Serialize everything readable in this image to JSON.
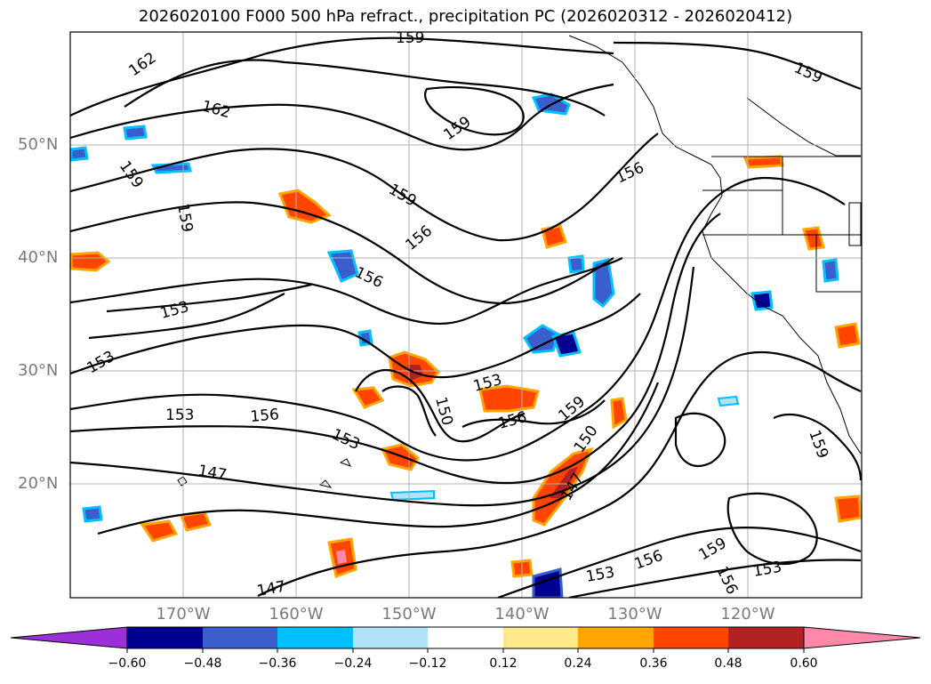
{
  "title": "2026020100 F000 500 hPa refract., precipitation PC (2026020312 - 2026020412)",
  "lat_labels": [
    "50°N",
    "40°N",
    "30°N",
    "20°N"
  ],
  "lon_labels": [
    "170°W",
    "160°W",
    "150°W",
    "140°W",
    "130°W",
    "120°W"
  ],
  "contour_labels": [
    "159",
    "162",
    "162",
    "159",
    "159",
    "159",
    "159",
    "156",
    "159",
    "156",
    "156",
    "153",
    "153",
    "153",
    "156",
    "153",
    "150",
    "153",
    "156",
    "159",
    "150",
    "147",
    "147",
    "147",
    "153",
    "156",
    "159",
    "156",
    "159",
    "153"
  ],
  "colorbar": {
    "ticks": [
      "−0.60",
      "−0.48",
      "−0.36",
      "−0.24",
      "−0.12",
      "0.12",
      "0.24",
      "0.36",
      "0.48",
      "0.60"
    ],
    "colors": [
      "#9b30d9",
      "#000090",
      "#3a5fcd",
      "#00bfff",
      "#aee3f8",
      "#ffffff",
      "#ffe98a",
      "#ffa500",
      "#ff4500",
      "#b22222",
      "#ff88aa"
    ]
  },
  "colors": {
    "grid": "#b0b0b0",
    "contour": "#000000",
    "tick_label": "#7a7a7a"
  }
}
